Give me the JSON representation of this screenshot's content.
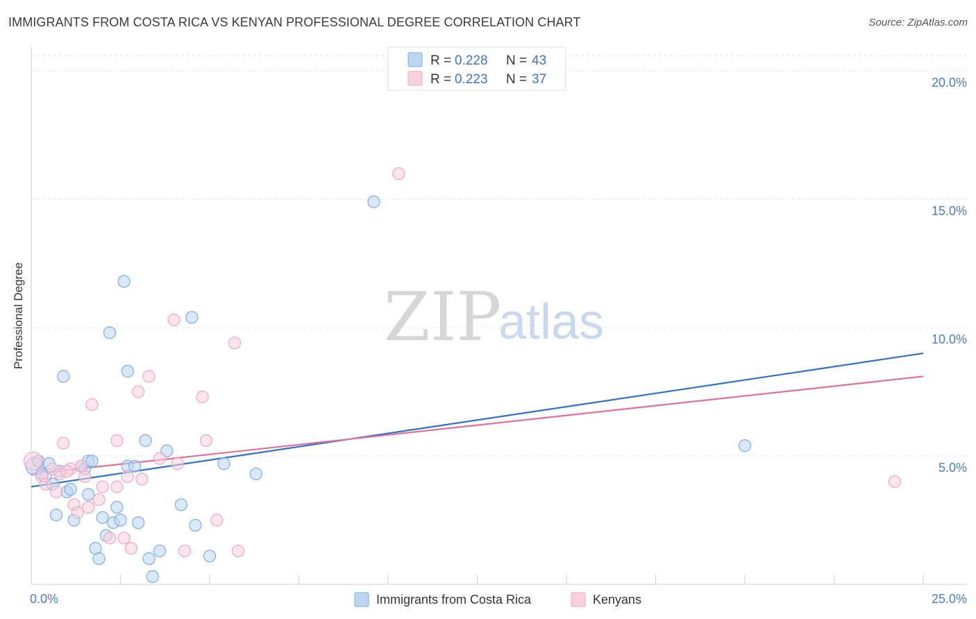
{
  "chart_data": {
    "type": "scatter",
    "title": "IMMIGRANTS FROM COSTA RICA VS KENYAN PROFESSIONAL DEGREE CORRELATION CHART",
    "source": "Source: ZipAtlas.com",
    "xlabel": "",
    "ylabel": "Professional Degree",
    "xlim": [
      0,
      25
    ],
    "ylim": [
      0,
      20.6
    ],
    "x_tick_labels": [
      "0.0%",
      "25.0%"
    ],
    "y_ticks": [
      5,
      10,
      15,
      20
    ],
    "y_tick_labels": [
      "5.0%",
      "10.0%",
      "15.0%",
      "20.0%"
    ],
    "grid": true,
    "legend": {
      "top": [
        {
          "r_label": "R = ",
          "r_value": "0.228",
          "n_label": "N = ",
          "n_value": "43"
        },
        {
          "r_label": "R = ",
          "r_value": "0.223",
          "n_label": "N = ",
          "n_value": "37"
        }
      ],
      "bottom": [
        "Immigrants from Costa Rica",
        "Kenyans"
      ]
    },
    "watermark": {
      "zip": "ZIP",
      "atlas": "atlas"
    },
    "series": [
      {
        "name": "Immigrants from Costa Rica",
        "color": "#7aaee6",
        "fill": "#bcd5f3",
        "line_color": "#2f6fd0",
        "trend": {
          "x0": 0,
          "y0": 3.8,
          "x1": 25,
          "y1": 9.0
        },
        "points": [
          [
            0.1,
            4.6
          ],
          [
            0.2,
            4.8
          ],
          [
            0.3,
            4.3
          ],
          [
            0.4,
            4.2
          ],
          [
            0.5,
            4.7
          ],
          [
            0.6,
            3.9
          ],
          [
            0.7,
            2.7
          ],
          [
            0.8,
            4.4
          ],
          [
            0.9,
            8.1
          ],
          [
            1.0,
            3.6
          ],
          [
            1.1,
            3.7
          ],
          [
            1.2,
            2.5
          ],
          [
            1.4,
            4.6
          ],
          [
            1.5,
            4.5
          ],
          [
            1.6,
            4.8
          ],
          [
            1.6,
            3.5
          ],
          [
            1.7,
            4.8
          ],
          [
            1.8,
            1.4
          ],
          [
            1.9,
            1.0
          ],
          [
            2.0,
            2.6
          ],
          [
            2.1,
            1.9
          ],
          [
            2.2,
            9.8
          ],
          [
            2.3,
            2.4
          ],
          [
            2.4,
            3.0
          ],
          [
            2.5,
            2.5
          ],
          [
            2.6,
            11.8
          ],
          [
            2.7,
            4.6
          ],
          [
            2.7,
            8.3
          ],
          [
            2.9,
            4.6
          ],
          [
            3.0,
            2.4
          ],
          [
            3.2,
            5.6
          ],
          [
            3.3,
            1.0
          ],
          [
            3.4,
            0.3
          ],
          [
            3.6,
            1.3
          ],
          [
            3.8,
            5.2
          ],
          [
            4.2,
            3.1
          ],
          [
            4.5,
            10.4
          ],
          [
            4.6,
            2.3
          ],
          [
            5.0,
            1.1
          ],
          [
            5.4,
            4.7
          ],
          [
            6.3,
            4.3
          ],
          [
            9.6,
            14.9
          ],
          [
            20.0,
            5.4
          ]
        ]
      },
      {
        "name": "Kenyans",
        "color": "#f0a6bf",
        "fill": "#f9d0de",
        "line_color": "#e26f9a",
        "trend": {
          "x0": 0,
          "y0": 4.3,
          "x1": 25,
          "y1": 8.1
        },
        "points": [
          [
            0.05,
            4.8
          ],
          [
            0.3,
            4.2
          ],
          [
            0.6,
            4.5
          ],
          [
            0.7,
            3.6
          ],
          [
            0.8,
            4.3
          ],
          [
            0.9,
            5.5
          ],
          [
            1.1,
            4.5
          ],
          [
            1.2,
            3.1
          ],
          [
            1.3,
            2.8
          ],
          [
            1.4,
            4.6
          ],
          [
            1.5,
            4.2
          ],
          [
            1.6,
            3.0
          ],
          [
            1.7,
            7.0
          ],
          [
            1.9,
            3.3
          ],
          [
            2.0,
            3.8
          ],
          [
            2.2,
            1.8
          ],
          [
            2.4,
            3.8
          ],
          [
            2.4,
            5.6
          ],
          [
            2.6,
            1.8
          ],
          [
            2.7,
            4.2
          ],
          [
            2.8,
            1.4
          ],
          [
            3.0,
            7.5
          ],
          [
            3.1,
            4.1
          ],
          [
            3.3,
            8.1
          ],
          [
            3.6,
            4.9
          ],
          [
            4.0,
            10.3
          ],
          [
            4.1,
            4.7
          ],
          [
            4.3,
            1.3
          ],
          [
            4.8,
            7.3
          ],
          [
            4.9,
            5.6
          ],
          [
            5.2,
            2.5
          ],
          [
            5.7,
            9.4
          ],
          [
            5.8,
            1.3
          ],
          [
            10.3,
            16.0
          ],
          [
            24.2,
            4.0
          ],
          [
            0.4,
            3.9
          ],
          [
            1.0,
            4.4
          ]
        ]
      }
    ]
  }
}
